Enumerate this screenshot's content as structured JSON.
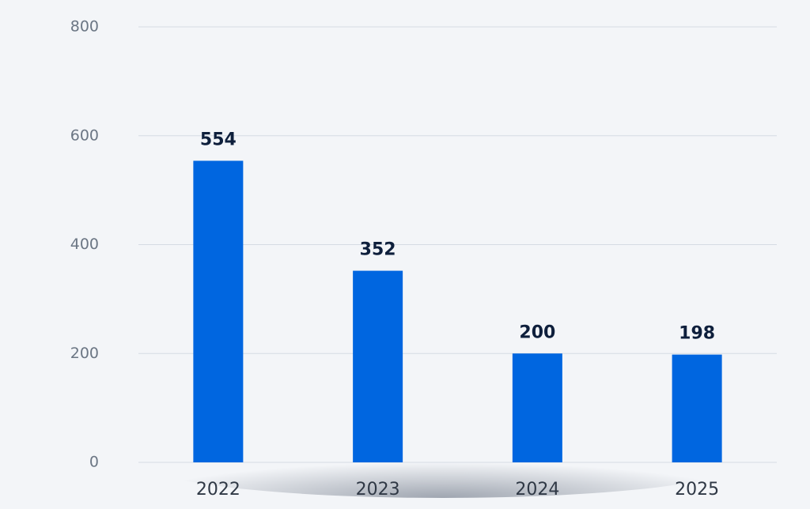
{
  "chart_data": {
    "type": "bar",
    "categories": [
      "2022",
      "2023",
      "2024",
      "2025"
    ],
    "values": [
      554,
      352,
      200,
      198
    ],
    "color": "#0066e0",
    "ylim": [
      0,
      800
    ],
    "yticks": [
      0,
      200,
      400,
      600,
      800
    ],
    "grid": true
  }
}
